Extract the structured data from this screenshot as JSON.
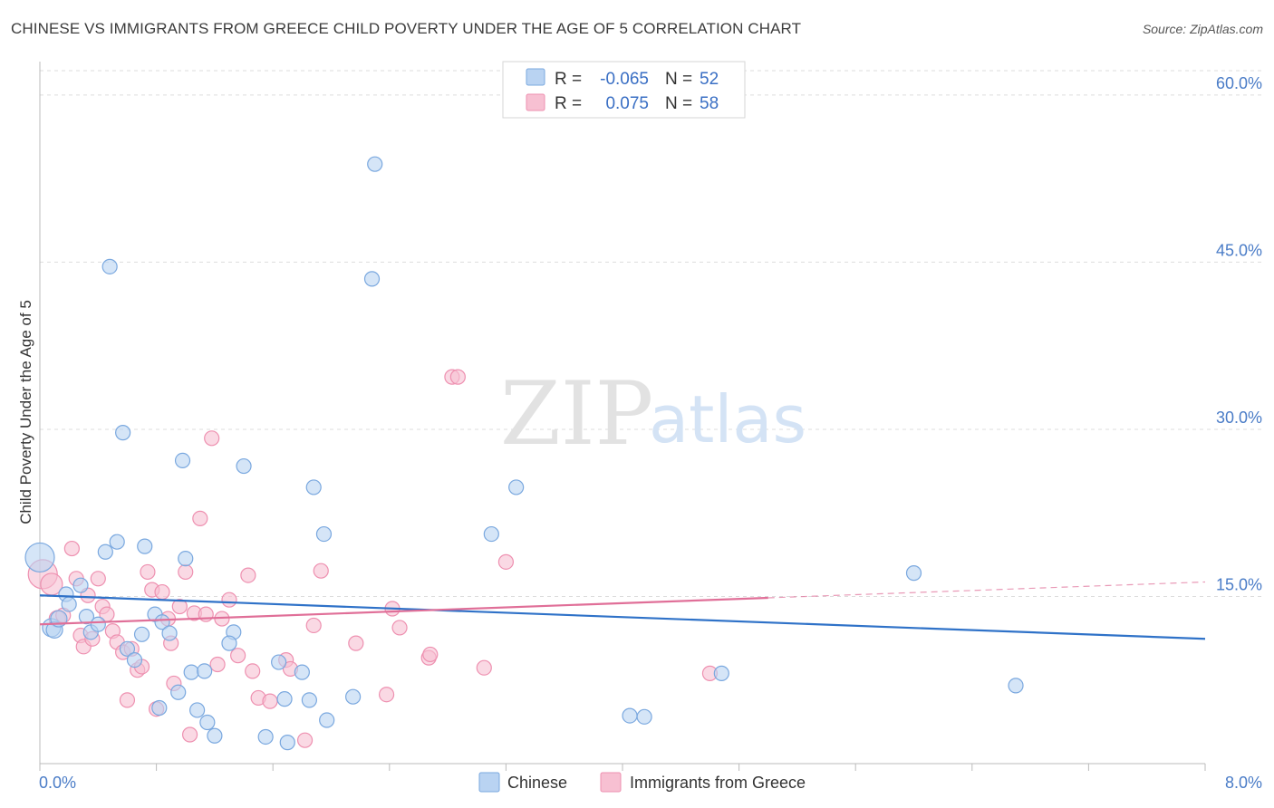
{
  "title": "CHINESE VS IMMIGRANTS FROM GREECE CHILD POVERTY UNDER THE AGE OF 5 CORRELATION CHART",
  "source": "Source: ZipAtlas.com",
  "watermark": {
    "zip": "ZIP",
    "atlas": "atlas"
  },
  "colors": {
    "chinese_fill": "#b9d3f2",
    "chinese_stroke": "#7aa8df",
    "chinese_line": "#2f72c8",
    "greece_fill": "#f7c0d2",
    "greece_stroke": "#ee90b0",
    "greece_line": "#e06f98",
    "grid": "#dddddd",
    "tick_label": "#4a7cc7"
  },
  "legend": {
    "rows": [
      {
        "r_label": "R =",
        "r_value": "-0.065",
        "n_label": "N =",
        "n_value": "52"
      },
      {
        "r_label": "R =",
        "r_value": "0.075",
        "n_label": "N =",
        "n_value": "58"
      }
    ]
  },
  "chart_data": {
    "type": "scatter",
    "title": "CHINESE VS IMMIGRANTS FROM GREECE CHILD POVERTY UNDER THE AGE OF 5 CORRELATION CHART",
    "xlabel": "",
    "ylabel": "Child Poverty Under the Age of 5",
    "xlim": [
      0,
      8
    ],
    "ylim": [
      0,
      63
    ],
    "x_tick_labels": {
      "min": "0.0%",
      "max": "8.0%"
    },
    "y_ticks": [
      {
        "value": 15,
        "label": "15.0%"
      },
      {
        "value": 30,
        "label": "30.0%"
      },
      {
        "value": 45,
        "label": "45.0%"
      },
      {
        "value": 60,
        "label": "60.0%"
      }
    ],
    "grid": true,
    "series": [
      {
        "name": "Chinese",
        "r": -0.065,
        "n": 52,
        "trend": {
          "x0": 0.0,
          "y0": 15.1,
          "x1": 8.0,
          "y1": 11.2,
          "dashed_from": null
        },
        "points": [
          [
            0.0,
            18.5,
            16
          ],
          [
            0.08,
            12.2,
            10
          ],
          [
            0.1,
            12.0,
            9
          ],
          [
            0.13,
            13.0,
            9
          ],
          [
            0.18,
            15.2,
            8
          ],
          [
            0.2,
            14.3,
            8
          ],
          [
            0.28,
            16.0,
            8
          ],
          [
            0.32,
            13.2,
            8
          ],
          [
            0.35,
            11.8,
            8
          ],
          [
            0.4,
            12.5,
            8
          ],
          [
            0.45,
            19.0,
            8
          ],
          [
            0.48,
            44.6,
            8
          ],
          [
            0.53,
            19.9,
            8
          ],
          [
            0.57,
            29.7,
            8
          ],
          [
            0.6,
            10.3,
            8
          ],
          [
            0.65,
            9.3,
            8
          ],
          [
            0.7,
            11.6,
            8
          ],
          [
            0.72,
            19.5,
            8
          ],
          [
            0.79,
            13.4,
            8
          ],
          [
            0.82,
            5.0,
            8
          ],
          [
            0.84,
            12.7,
            8
          ],
          [
            0.89,
            11.7,
            8
          ],
          [
            0.95,
            6.4,
            8
          ],
          [
            0.98,
            27.2,
            8
          ],
          [
            1.0,
            18.4,
            8
          ],
          [
            1.04,
            8.2,
            8
          ],
          [
            1.08,
            4.8,
            8
          ],
          [
            1.13,
            8.3,
            8
          ],
          [
            1.15,
            3.7,
            8
          ],
          [
            1.2,
            2.5,
            8
          ],
          [
            1.33,
            11.8,
            8
          ],
          [
            1.4,
            26.7,
            8
          ],
          [
            1.55,
            2.4,
            8
          ],
          [
            1.64,
            9.1,
            8
          ],
          [
            1.68,
            5.8,
            8
          ],
          [
            1.7,
            1.9,
            8
          ],
          [
            1.8,
            8.2,
            8
          ],
          [
            1.85,
            5.7,
            8
          ],
          [
            1.88,
            24.8,
            8
          ],
          [
            1.95,
            20.6,
            8
          ],
          [
            1.97,
            3.9,
            8
          ],
          [
            2.15,
            6.0,
            8
          ],
          [
            2.28,
            43.5,
            8
          ],
          [
            2.3,
            53.8,
            8
          ],
          [
            3.1,
            20.6,
            8
          ],
          [
            3.27,
            24.8,
            8
          ],
          [
            4.05,
            4.3,
            8
          ],
          [
            4.15,
            4.2,
            8
          ],
          [
            4.68,
            8.1,
            8
          ],
          [
            6.0,
            17.1,
            8
          ],
          [
            6.7,
            7.0,
            8
          ],
          [
            1.3,
            10.8,
            8
          ]
        ]
      },
      {
        "name": "Immigrants from Greece",
        "r": 0.075,
        "n": 58,
        "trend": {
          "x0": 0.0,
          "y0": 12.5,
          "x1": 8.0,
          "y1": 16.3,
          "dashed_from": 5.0
        },
        "points": [
          [
            0.02,
            17.0,
            16
          ],
          [
            0.08,
            16.1,
            12
          ],
          [
            0.12,
            13.0,
            9
          ],
          [
            0.16,
            13.3,
            8
          ],
          [
            0.22,
            19.3,
            8
          ],
          [
            0.25,
            16.6,
            8
          ],
          [
            0.28,
            11.5,
            8
          ],
          [
            0.3,
            10.5,
            8
          ],
          [
            0.33,
            15.1,
            8
          ],
          [
            0.36,
            11.2,
            8
          ],
          [
            0.4,
            16.6,
            8
          ],
          [
            0.43,
            14.1,
            8
          ],
          [
            0.46,
            13.4,
            8
          ],
          [
            0.5,
            11.9,
            8
          ],
          [
            0.53,
            10.9,
            8
          ],
          [
            0.57,
            10.0,
            8
          ],
          [
            0.6,
            5.7,
            8
          ],
          [
            0.63,
            10.3,
            8
          ],
          [
            0.67,
            8.4,
            8
          ],
          [
            0.7,
            8.7,
            8
          ],
          [
            0.74,
            17.2,
            8
          ],
          [
            0.77,
            15.6,
            8
          ],
          [
            0.8,
            4.9,
            8
          ],
          [
            0.84,
            15.4,
            8
          ],
          [
            0.88,
            13.0,
            8
          ],
          [
            0.9,
            10.8,
            8
          ],
          [
            0.92,
            7.2,
            8
          ],
          [
            0.96,
            14.1,
            8
          ],
          [
            1.0,
            17.2,
            8
          ],
          [
            1.03,
            2.6,
            8
          ],
          [
            1.06,
            13.5,
            8
          ],
          [
            1.1,
            22.0,
            8
          ],
          [
            1.14,
            13.4,
            8
          ],
          [
            1.18,
            29.2,
            8
          ],
          [
            1.22,
            8.9,
            8
          ],
          [
            1.25,
            13.0,
            8
          ],
          [
            1.3,
            14.7,
            8
          ],
          [
            1.36,
            9.7,
            8
          ],
          [
            1.43,
            16.9,
            8
          ],
          [
            1.46,
            8.3,
            8
          ],
          [
            1.5,
            5.9,
            8
          ],
          [
            1.58,
            5.6,
            8
          ],
          [
            1.69,
            9.3,
            8
          ],
          [
            1.72,
            8.5,
            8
          ],
          [
            1.82,
            2.1,
            8
          ],
          [
            1.88,
            12.4,
            8
          ],
          [
            1.93,
            17.3,
            8
          ],
          [
            2.17,
            10.8,
            8
          ],
          [
            2.38,
            6.2,
            8
          ],
          [
            2.42,
            13.9,
            8
          ],
          [
            2.47,
            12.2,
            8
          ],
          [
            2.67,
            9.5,
            8
          ],
          [
            2.68,
            9.8,
            8
          ],
          [
            2.83,
            34.7,
            8
          ],
          [
            2.87,
            34.7,
            8
          ],
          [
            3.05,
            8.6,
            8
          ],
          [
            3.2,
            18.1,
            8
          ],
          [
            4.6,
            8.1,
            8
          ]
        ]
      }
    ]
  },
  "bottom_legend": [
    {
      "label": "Chinese"
    },
    {
      "label": "Immigrants from Greece"
    }
  ]
}
